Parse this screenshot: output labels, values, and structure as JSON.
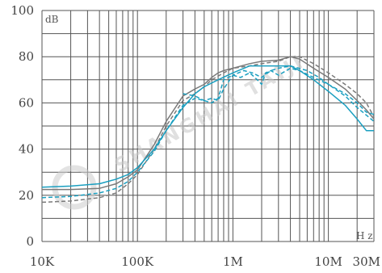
{
  "chart_data": {
    "type": "line",
    "title": "",
    "xlabel": "H z",
    "ylabel": "dB",
    "x_scale": "log",
    "xlim": [
      10000,
      30000000
    ],
    "ylim": [
      0,
      100
    ],
    "grid": true,
    "y_ticks": [
      0,
      20,
      40,
      60,
      80,
      100
    ],
    "y_tick_labels": [
      "0",
      "20",
      "40",
      "60",
      "80",
      "100"
    ],
    "x_ticks": [
      10000,
      100000,
      1000000,
      10000000,
      30000000
    ],
    "x_tick_labels": [
      "10K",
      "100K",
      "1M",
      "10M",
      "30M"
    ],
    "watermark": "SHANGHAI TAIJI",
    "colors": {
      "gray": "#7a7a7a",
      "cyan": "#1a9fc0",
      "grid": "#555555"
    },
    "series": [
      {
        "color": "#7a7a7a",
        "dash": "solid",
        "points": [
          [
            10000,
            22.5
          ],
          [
            20000,
            22.5
          ],
          [
            40000,
            23
          ],
          [
            60000,
            25
          ],
          [
            80000,
            28
          ],
          [
            100000,
            31
          ],
          [
            150000,
            42
          ],
          [
            200000,
            52
          ],
          [
            300000,
            63
          ],
          [
            400000,
            66
          ],
          [
            500000,
            68
          ],
          [
            600000,
            71
          ],
          [
            700000,
            73
          ],
          [
            800000,
            74
          ],
          [
            1000000,
            75
          ],
          [
            1500000,
            77
          ],
          [
            2000000,
            78
          ],
          [
            3000000,
            78.5
          ],
          [
            4000000,
            80
          ],
          [
            5000000,
            79
          ],
          [
            7000000,
            75
          ],
          [
            10000000,
            71
          ],
          [
            15000000,
            66
          ],
          [
            20000000,
            61
          ],
          [
            25000000,
            57
          ],
          [
            30000000,
            53
          ]
        ]
      },
      {
        "color": "#7a7a7a",
        "dash": "dashed",
        "points": [
          [
            10000,
            17
          ],
          [
            20000,
            17.5
          ],
          [
            40000,
            19
          ],
          [
            60000,
            21
          ],
          [
            80000,
            25
          ],
          [
            100000,
            29
          ],
          [
            150000,
            40
          ],
          [
            200000,
            50
          ],
          [
            300000,
            61
          ],
          [
            400000,
            64
          ],
          [
            500000,
            67
          ],
          [
            600000,
            70
          ],
          [
            800000,
            73
          ],
          [
            1000000,
            75
          ],
          [
            1500000,
            76
          ],
          [
            2000000,
            77
          ],
          [
            3000000,
            78
          ],
          [
            4000000,
            80
          ],
          [
            5000000,
            80
          ],
          [
            7000000,
            77
          ],
          [
            10000000,
            73
          ],
          [
            15000000,
            68
          ],
          [
            20000000,
            64
          ],
          [
            25000000,
            60
          ],
          [
            30000000,
            54
          ]
        ]
      },
      {
        "color": "#1a9fc0",
        "dash": "solid",
        "points": [
          [
            10000,
            23.5
          ],
          [
            20000,
            24
          ],
          [
            40000,
            25
          ],
          [
            60000,
            27
          ],
          [
            80000,
            29
          ],
          [
            100000,
            32
          ],
          [
            150000,
            40
          ],
          [
            200000,
            48
          ],
          [
            300000,
            58
          ],
          [
            400000,
            64
          ],
          [
            500000,
            67
          ],
          [
            700000,
            70
          ],
          [
            1000000,
            73
          ],
          [
            1500000,
            76
          ],
          [
            2000000,
            76
          ],
          [
            3000000,
            76
          ],
          [
            4000000,
            76
          ],
          [
            5000000,
            74
          ],
          [
            7000000,
            70
          ],
          [
            10000000,
            65
          ],
          [
            15000000,
            59
          ],
          [
            20000000,
            53
          ],
          [
            25000000,
            48
          ],
          [
            30000000,
            48
          ]
        ]
      },
      {
        "color": "#1a9fc0",
        "dash": "dashed",
        "points": [
          [
            10000,
            19
          ],
          [
            20000,
            19.5
          ],
          [
            40000,
            21
          ],
          [
            60000,
            23
          ],
          [
            80000,
            26
          ],
          [
            100000,
            30
          ],
          [
            150000,
            39
          ],
          [
            200000,
            48
          ],
          [
            300000,
            59
          ],
          [
            400000,
            62
          ],
          [
            500000,
            61
          ],
          [
            600000,
            60
          ],
          [
            700000,
            62
          ],
          [
            800000,
            70
          ],
          [
            1000000,
            72
          ],
          [
            1200000,
            71
          ],
          [
            1500000,
            73
          ],
          [
            1800000,
            70
          ],
          [
            2000000,
            68
          ],
          [
            2200000,
            73
          ],
          [
            2500000,
            74
          ],
          [
            3000000,
            72
          ],
          [
            4000000,
            75
          ],
          [
            5000000,
            74
          ],
          [
            7000000,
            71
          ],
          [
            10000000,
            68
          ],
          [
            15000000,
            64
          ],
          [
            20000000,
            60
          ],
          [
            25000000,
            56
          ],
          [
            30000000,
            55
          ]
        ]
      },
      {
        "color": "#1a9fc0",
        "dash": "dashed",
        "points": [
          [
            300000,
            64
          ],
          [
            400000,
            63
          ],
          [
            500000,
            61
          ],
          [
            600000,
            62
          ],
          [
            700000,
            61
          ],
          [
            800000,
            66
          ],
          [
            1000000,
            72
          ],
          [
            1300000,
            74
          ],
          [
            1600000,
            73
          ],
          [
            2000000,
            71
          ],
          [
            2500000,
            74
          ],
          [
            3000000,
            75
          ],
          [
            4000000,
            76
          ],
          [
            6000000,
            74
          ],
          [
            8000000,
            71
          ],
          [
            10000000,
            68
          ],
          [
            15000000,
            63
          ],
          [
            20000000,
            58
          ],
          [
            30000000,
            52
          ]
        ]
      }
    ]
  }
}
